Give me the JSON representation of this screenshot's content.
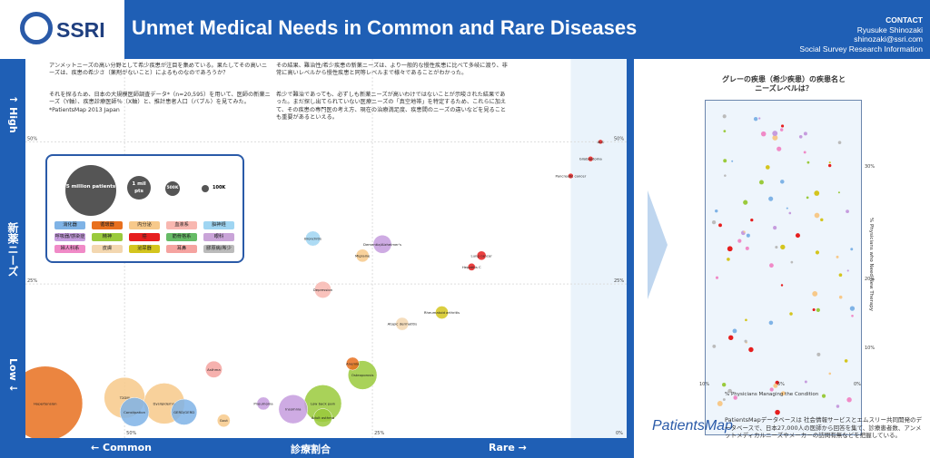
{
  "header": {
    "logo_text": "SSRI",
    "title": "Unmet Medical Needs in Common and Rare Diseases",
    "contact_label": "CONTACT",
    "contact_name": "Ryusuke Shinozaki",
    "contact_email": "shinozaki@ssri.com",
    "contact_org": "Social Survey Research Information"
  },
  "axis": {
    "y_high": "↑ High",
    "y_title": "新薬ニーズ",
    "y_low": "Low ↓",
    "x_common": "← Common",
    "x_title": "診療割合",
    "x_rare": "Rare →"
  },
  "text": {
    "p1a": "アンメットニーズの高い分野として希少疾患が注目を集めている。果たしてその高いニーズは、疾患の希少さ（薬剤がないこと）によるものなのであろうか？",
    "p1b": "それを探るため、日本の大規模医師調査データ*（n=20,595）を用いて、医師の新薬ニーズ（Y軸）、疾患診療医師％（X軸）と、推計患者人口（バブル）を見てみた。　*PatientsMap 2013 Japan",
    "p2a": "その結果、難治性/希少疾患の新薬ニーズは、より一般的な慢性疾患に比べて多岐に渡り、非常に高いレベルから慢性疾患と同等レベルまで様々であることがわかった。",
    "p2b": "希少で難治であっても、必ずしも新薬ニーズが高いわけではないことが示唆された結果であった。まだ探し出てられていない医療ニーズの「真空地帯」を特定するため、これらに加えて、その疾患の専門医の考え方、現在の治療満足度、疾患間のニーズの違いなどを見ることも重要があるといえる。"
  },
  "legend": {
    "b1": "5 million patients",
    "b2": "1 mil pts",
    "b3": "500K",
    "b4": "100K",
    "categories": [
      {
        "label": "消化器",
        "color": "#7fb3e6"
      },
      {
        "label": "循環器",
        "color": "#e8701e"
      },
      {
        "label": "内分泌",
        "color": "#f7c98a"
      },
      {
        "label": "血液系",
        "color": "#f8b7b0"
      },
      {
        "label": "脳神経",
        "color": "#9fd5f2"
      },
      {
        "label": "呼吸器/感染症",
        "color": "#c69cde"
      },
      {
        "label": "精神",
        "color": "#9aca3c"
      },
      {
        "label": "癌",
        "color": "#e61e1e"
      },
      {
        "label": "筋骨格系",
        "color": "#66bb66"
      },
      {
        "label": "眼科",
        "color": "#c9a4d8"
      },
      {
        "label": "婦人科系",
        "color": "#f08ac7"
      },
      {
        "label": "皮膚",
        "color": "#f3d7b0"
      },
      {
        "label": "泌尿器",
        "color": "#d4c51e"
      },
      {
        "label": "耳鼻",
        "color": "#f5a3a0"
      },
      {
        "label": "膠原病/希少",
        "color": "#bbbbbb"
      }
    ]
  },
  "chart_data": {
    "type": "scatter",
    "title": "",
    "xlabel": "診療割合",
    "ylabel": "新薬ニーズ",
    "x_ticks": [
      "50%",
      "25%",
      "0%"
    ],
    "y_ticks": [
      "50%",
      "25%"
    ],
    "y_ticks_right": [
      "50%",
      "25%"
    ],
    "xlim": [
      60,
      0
    ],
    "ylim": [
      0,
      55
    ],
    "bubble_size_unit": "patients (million)",
    "series": [
      {
        "label": "Hypertension",
        "x": 58,
        "y": 4,
        "size": 10,
        "color": "#e8701e"
      },
      {
        "label": "T2DM",
        "x": 50,
        "y": 5,
        "size": 3,
        "color": "#f7c98a"
      },
      {
        "label": "Dyslipidemia",
        "x": 46,
        "y": 4,
        "size": 3,
        "color": "#f7c98a"
      },
      {
        "label": "Constipation",
        "x": 49,
        "y": 2.5,
        "size": 1.5,
        "color": "#7fb3e6"
      },
      {
        "label": "GERD/GERD",
        "x": 44,
        "y": 2.5,
        "size": 1.2,
        "color": "#7fb3e6"
      },
      {
        "label": "Asthma",
        "x": 41,
        "y": 10,
        "size": 0.5,
        "color": "#f5a3a0"
      },
      {
        "label": "Gout",
        "x": 40,
        "y": 1,
        "size": 0.3,
        "color": "#f7c98a"
      },
      {
        "label": "Pneumonia",
        "x": 36,
        "y": 4,
        "size": 0.3,
        "color": "#c69cde"
      },
      {
        "label": "Insomnia",
        "x": 33,
        "y": 3,
        "size": 1.5,
        "color": "#c69cde"
      },
      {
        "label": "Low back pain",
        "x": 30,
        "y": 4,
        "size": 2.5,
        "color": "#9aca3c"
      },
      {
        "label": "Adult asthma",
        "x": 30,
        "y": 1.5,
        "size": 0.6,
        "color": "#9aca3c"
      },
      {
        "label": "Osteoporosis",
        "x": 26,
        "y": 9,
        "size": 1.5,
        "color": "#9aca3c"
      },
      {
        "label": "Anemia",
        "x": 27,
        "y": 11,
        "size": 0.3,
        "color": "#e8701e"
      },
      {
        "label": "Migraine",
        "x": 26,
        "y": 30,
        "size": 0.3,
        "color": "#f7c98a"
      },
      {
        "label": "Bronchitis",
        "x": 31,
        "y": 33,
        "size": 0.4,
        "color": "#9fd5f2"
      },
      {
        "label": "Dementia/Alzheimer's",
        "x": 24,
        "y": 32,
        "size": 0.6,
        "color": "#c69cde"
      },
      {
        "label": "Depression",
        "x": 30,
        "y": 24,
        "size": 0.5,
        "color": "#f8b7b0"
      },
      {
        "label": "Atopic dermatitis",
        "x": 22,
        "y": 18,
        "size": 0.3,
        "color": "#f3d7b0"
      },
      {
        "label": "Rheumatoid arthritis",
        "x": 18,
        "y": 20,
        "size": 0.3,
        "color": "#d4c51e"
      },
      {
        "label": "Hepatitis C",
        "x": 15,
        "y": 28,
        "size": 0.1,
        "color": "#e61e1e"
      },
      {
        "label": "Lung cancer",
        "x": 14,
        "y": 30,
        "size": 0.15,
        "color": "#e61e1e"
      },
      {
        "label": "Glioblastoma",
        "x": 3,
        "y": 47,
        "size": 0.05,
        "color": "#e61e1e"
      },
      {
        "label": "Pancreatic cancer",
        "x": 5,
        "y": 44,
        "size": 0.05,
        "color": "#e61e1e"
      },
      {
        "label": "ALS",
        "x": 2,
        "y": 50,
        "size": 0.01,
        "color": "#e61e1e"
      }
    ],
    "legend_placement": "left-middle",
    "grid": true
  },
  "zoom": {
    "title": "グレーの疾患（希少疾患）の疾患名とニーズレベルは？",
    "xlabel": "% Physicians Managing the Condition",
    "ylabel": "% Physicians who Need New Therapy",
    "x_ticks": [
      "10%",
      "5%",
      "0%"
    ],
    "y_ticks": [
      "30%",
      "20%",
      "10%"
    ]
  },
  "footer": {
    "logo": "PatientsMap",
    "text": "PatientsMapデータベースは 社会情報サービスとエムスリー共同開発のデータベースで、日本27,000人の医師から回答を集て、診療患者数、アンメットメディカルニーズやメーカーの訪問有無などを把握している。"
  }
}
